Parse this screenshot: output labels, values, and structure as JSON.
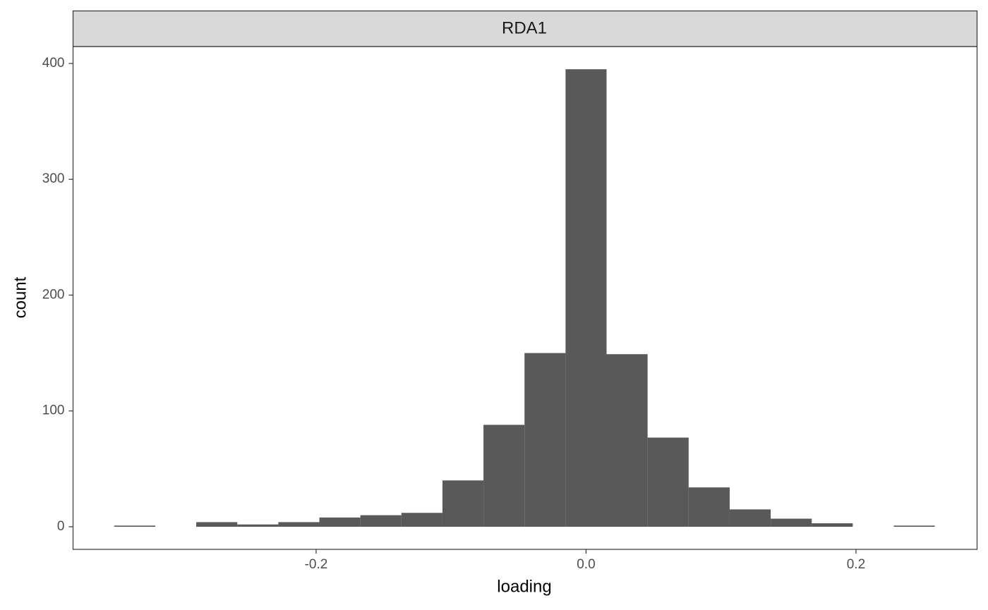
{
  "chart_data": {
    "type": "histogram",
    "facet": "RDA1",
    "xlabel": "loading",
    "ylabel": "count",
    "bins": [
      -0.3496,
      -0.3192,
      -0.2888,
      -0.2584,
      -0.228,
      -0.1976,
      -0.1672,
      -0.1368,
      -0.1064,
      -0.076,
      -0.0456,
      -0.0152,
      0.0152,
      0.0456,
      0.076,
      0.1064,
      0.1368,
      0.1672,
      0.1976,
      0.228,
      0.2584
    ],
    "values": [
      1,
      0,
      4,
      2,
      4,
      8,
      10,
      12,
      40,
      88,
      150,
      395,
      149,
      77,
      34,
      15,
      7,
      3,
      0,
      1
    ],
    "color": "#595959",
    "xlim": [
      -0.3801,
      0.2897
    ],
    "xticks": [
      -0.2,
      {
        "value": 0,
        "label": "0.0"
      },
      0.2
    ],
    "ylim": [
      -19.5,
      414.6
    ],
    "yticks": [
      0,
      100,
      200,
      300,
      400
    ],
    "grid": false
  }
}
